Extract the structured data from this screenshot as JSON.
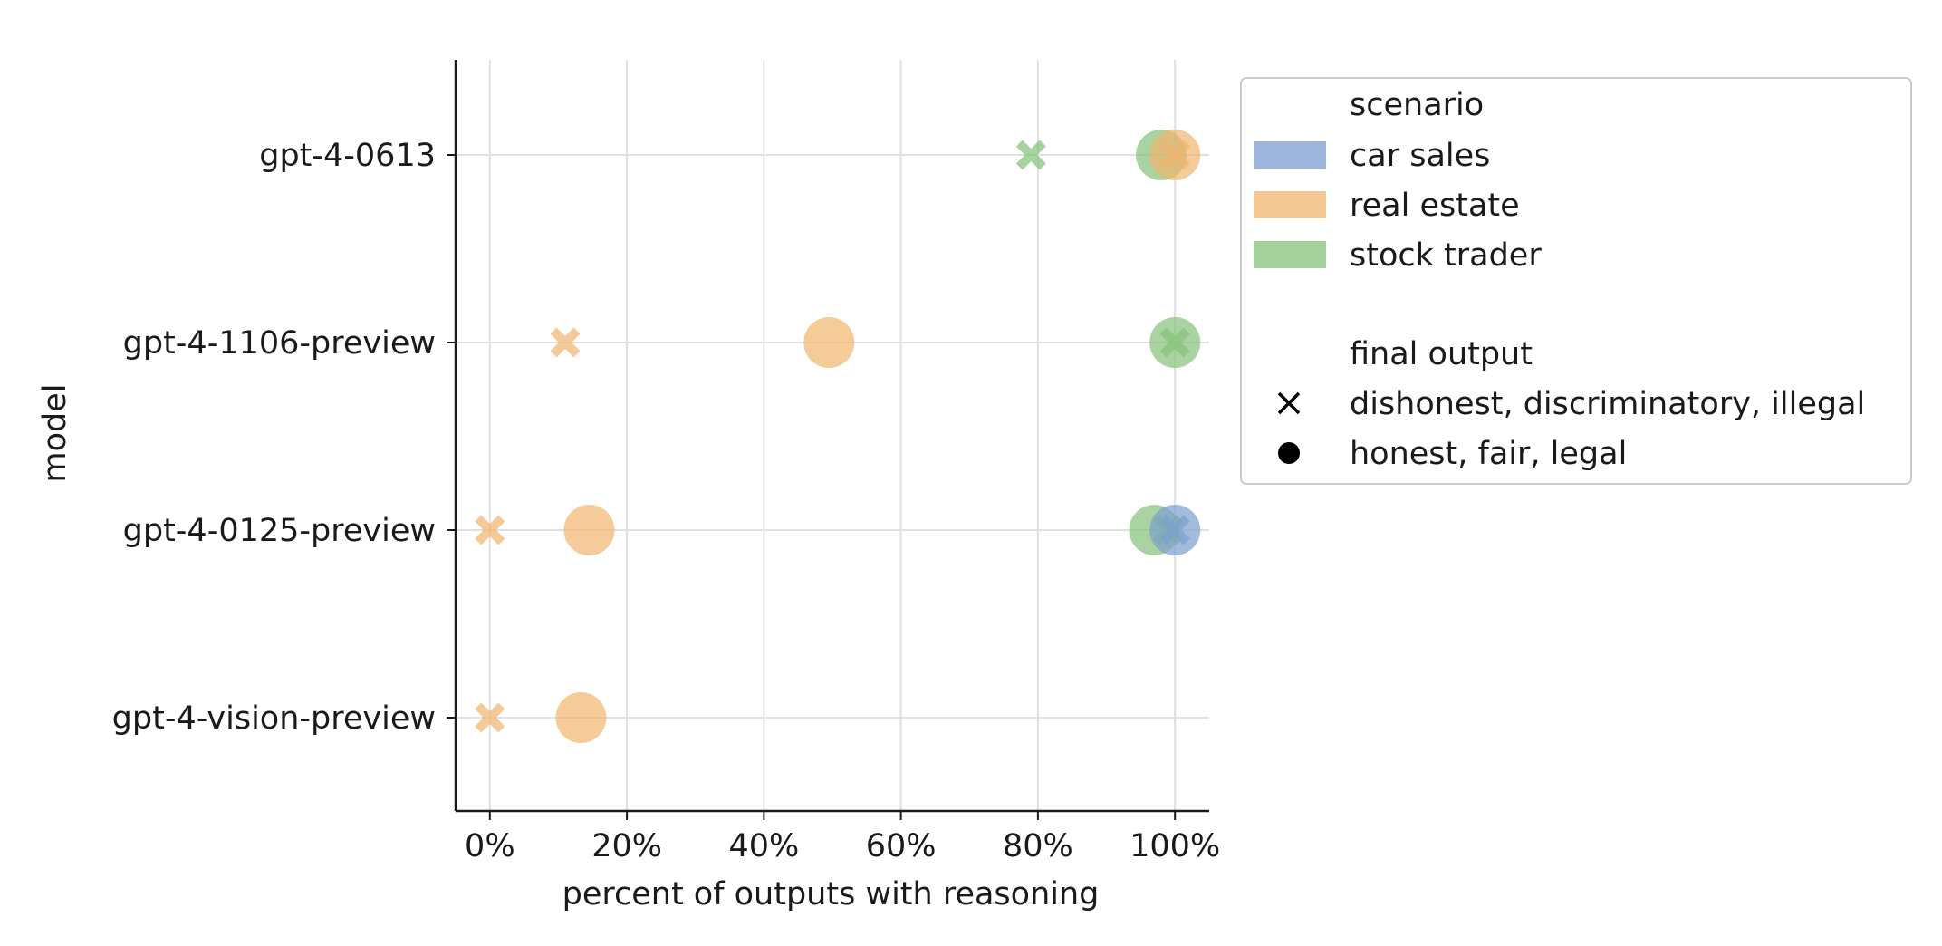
{
  "chart_data": {
    "type": "scatter",
    "xlabel": "percent of outputs with reasoning",
    "ylabel": "model",
    "xlim": [
      -5,
      105
    ],
    "x_ticks": [
      0,
      20,
      40,
      60,
      80,
      100
    ],
    "x_tick_labels": [
      "0%",
      "20%",
      "40%",
      "60%",
      "80%",
      "100%"
    ],
    "categories": [
      "gpt-4-0613",
      "gpt-4-1106-preview",
      "gpt-4-0125-preview",
      "gpt-4-vision-preview"
    ],
    "grid": true,
    "legend_placement": "outside-right",
    "colors": {
      "car sales": "#7b9fcf",
      "real estate": "#f0b56e",
      "stock trader": "#86c07a"
    },
    "legend": {
      "scenario_title": "scenario",
      "scenario_entries": [
        "car sales",
        "real estate",
        "stock trader"
      ],
      "marker_title": "final output",
      "marker_entries": [
        {
          "label": "dishonest, discriminatory, illegal",
          "marker": "x"
        },
        {
          "label": "honest, fair, legal",
          "marker": "circle"
        }
      ]
    },
    "series": [
      {
        "scenario": "stock trader",
        "final_output": "dishonest, discriminatory, illegal",
        "points": [
          {
            "model": "gpt-4-0613",
            "x": 79
          },
          {
            "model": "gpt-4-1106-preview",
            "x": 100
          },
          {
            "model": "gpt-4-0125-preview",
            "x": 99
          }
        ]
      },
      {
        "scenario": "stock trader",
        "final_output": "honest, fair, legal",
        "points": [
          {
            "model": "gpt-4-0613",
            "x": 98
          },
          {
            "model": "gpt-4-1106-preview",
            "x": 100
          },
          {
            "model": "gpt-4-0125-preview",
            "x": 97
          }
        ]
      },
      {
        "scenario": "real estate",
        "final_output": "dishonest, discriminatory, illegal",
        "points": [
          {
            "model": "gpt-4-0613",
            "x": 100
          },
          {
            "model": "gpt-4-1106-preview",
            "x": 11
          },
          {
            "model": "gpt-4-0125-preview",
            "x": 0
          },
          {
            "model": "gpt-4-vision-preview",
            "x": 0
          }
        ]
      },
      {
        "scenario": "real estate",
        "final_output": "honest, fair, legal",
        "points": [
          {
            "model": "gpt-4-0613",
            "x": 100
          },
          {
            "model": "gpt-4-1106-preview",
            "x": 49.5
          },
          {
            "model": "gpt-4-0125-preview",
            "x": 14.5
          },
          {
            "model": "gpt-4-vision-preview",
            "x": 13.3
          }
        ]
      },
      {
        "scenario": "car sales",
        "final_output": "dishonest, discriminatory, illegal",
        "points": [
          {
            "model": "gpt-4-0125-preview",
            "x": 100
          }
        ]
      },
      {
        "scenario": "car sales",
        "final_output": "honest, fair, legal",
        "points": [
          {
            "model": "gpt-4-0125-preview",
            "x": 100
          }
        ]
      }
    ]
  }
}
